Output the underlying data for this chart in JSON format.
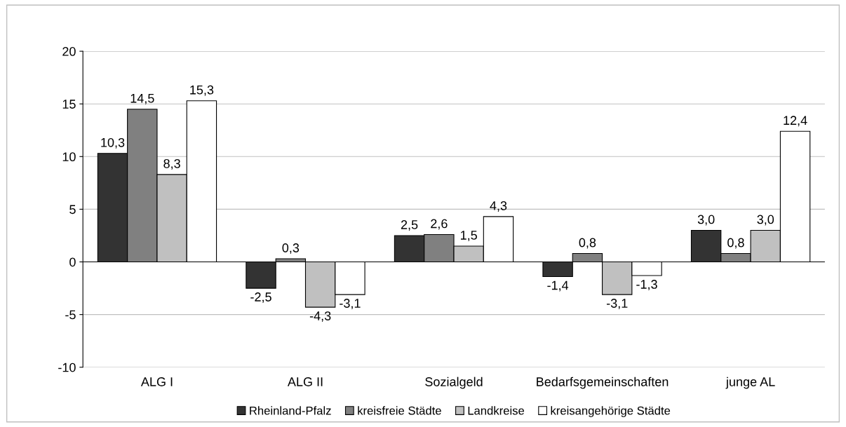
{
  "chart_data": {
    "type": "bar",
    "categories": [
      "ALG I",
      "ALG II",
      "Sozialgeld",
      "Bedarfsgemeinschaften",
      "junge AL"
    ],
    "series": [
      {
        "name": "Rheinland-Pfalz",
        "color": "#333333",
        "values": [
          10.3,
          -2.5,
          2.5,
          -1.4,
          3.0
        ],
        "value_labels": [
          "10,3",
          "-2,5",
          "2,5",
          "-1,4",
          "3,0"
        ]
      },
      {
        "name": "kreisfreie Städte",
        "color": "#808080",
        "values": [
          14.5,
          0.3,
          2.6,
          0.8,
          0.8
        ],
        "value_labels": [
          "14,5",
          "0,3",
          "2,6",
          "0,8",
          "0,8"
        ]
      },
      {
        "name": "Landkreise",
        "color": "#c0c0c0",
        "values": [
          8.3,
          -4.3,
          1.5,
          -3.1,
          3.0
        ],
        "value_labels": [
          "8,3",
          "-4,3",
          "1,5",
          "-3,1",
          "3,0"
        ]
      },
      {
        "name": "kreisangehörige Städte",
        "color": "#ffffff",
        "values": [
          15.3,
          -3.1,
          4.3,
          -1.3,
          12.4
        ],
        "value_labels": [
          "15,3",
          "-3,1",
          "4,3",
          "-1,3",
          "12,4"
        ]
      }
    ],
    "ylim": [
      -10,
      20
    ],
    "yticks": [
      -10,
      -5,
      0,
      5,
      10,
      15,
      20
    ],
    "ref_lines": [
      {
        "axis": "y",
        "value": 0,
        "color": "#000000"
      }
    ],
    "grid": "y",
    "legend": "bottom"
  }
}
